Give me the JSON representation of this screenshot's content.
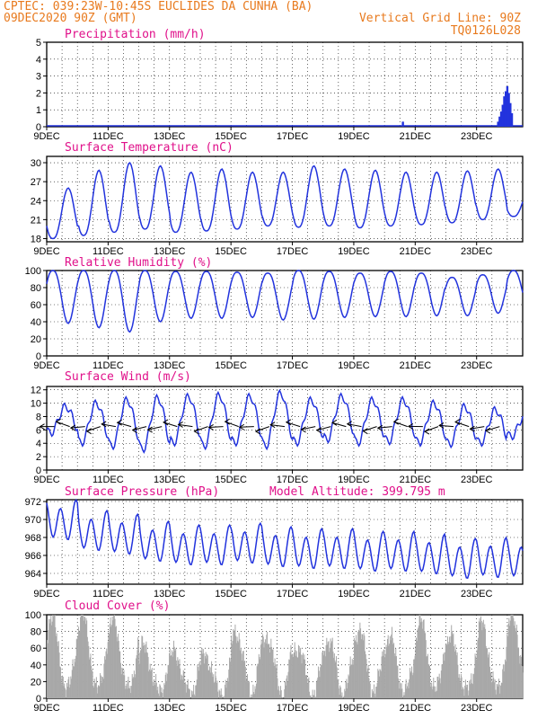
{
  "header": {
    "left_line1": "CPTEC:   039:23W-10:45S   EUCLIDES DA CUNHA (BA)",
    "left_line2": "09DEC2020 90Z (GMT)",
    "right_line2": "Vertical Grid Line: 90Z",
    "right_line3": "TQ0126L028"
  },
  "colors": {
    "header": "#e87a1e",
    "panel_title": "#e0108a",
    "series": "#2233dd",
    "cloud": "#a8a8a8"
  },
  "x_axis": {
    "labels": [
      "9DEC",
      "11DEC",
      "13DEC",
      "15DEC",
      "17DEC",
      "19DEC",
      "21DEC",
      "23DEC"
    ],
    "range_days": [
      9,
      24.5
    ]
  },
  "chart_data": [
    {
      "id": "precipitation",
      "type": "bar",
      "title": "Precipitation (mm/h)",
      "ylim": [
        0,
        5
      ],
      "yticks": [
        0,
        1,
        2,
        3,
        4,
        5
      ],
      "x": [
        20.6,
        23.7,
        23.75,
        23.8,
        23.85,
        23.9,
        23.95,
        24.0,
        24.05,
        24.1,
        24.15
      ],
      "values": [
        0.3,
        0.3,
        0.6,
        0.9,
        1.3,
        1.8,
        2.1,
        2.4,
        2.0,
        1.4,
        0.8
      ]
    },
    {
      "id": "temperature",
      "type": "line",
      "title": "Surface Temperature (nC)",
      "ylim": [
        17.5,
        31
      ],
      "yticks": [
        18,
        21,
        24,
        27,
        30
      ],
      "daily_max": [
        26.0,
        28.8,
        30.0,
        29.5,
        28.5,
        29.0,
        28.5,
        28.5,
        29.5,
        29.0,
        28.8,
        28.5,
        28.5,
        28.7,
        29.0,
        25.5
      ],
      "daily_min": [
        18.0,
        18.5,
        19.0,
        19.5,
        19.0,
        19.2,
        19.5,
        20.0,
        19.8,
        20.0,
        19.7,
        20.0,
        20.2,
        20.5,
        21.0,
        21.5
      ]
    },
    {
      "id": "humidity",
      "type": "line",
      "title": "Relative Humidity (%)",
      "ylim": [
        0,
        100
      ],
      "yticks": [
        0,
        20,
        40,
        60,
        80,
        100
      ],
      "daily_max": [
        100,
        100,
        100,
        100,
        99,
        99,
        98,
        97,
        100,
        99,
        97,
        99,
        97,
        92,
        95,
        100
      ],
      "daily_min": [
        38,
        33,
        28,
        40,
        44,
        44,
        45,
        42,
        43,
        45,
        46,
        46,
        47,
        47,
        50,
        55
      ]
    },
    {
      "id": "wind",
      "type": "line",
      "title": "Surface Wind (m/s)",
      "ylim": [
        0,
        12.5
      ],
      "yticks": [
        0,
        2,
        4,
        6,
        8,
        10,
        12
      ],
      "daily_max": [
        9.5,
        10.0,
        10.5,
        10.8,
        11.0,
        11.2,
        11.0,
        11.5,
        10.5,
        11.0,
        10.5,
        10.5,
        10.0,
        9.5,
        9.0,
        8.5
      ],
      "daily_min": [
        5.5,
        4.0,
        3.5,
        3.0,
        4.0,
        3.5,
        4.0,
        3.5,
        4.0,
        4.5,
        4.0,
        4.2,
        4.0,
        3.8,
        4.0,
        5.0
      ],
      "vector_level": 6.5
    },
    {
      "id": "pressure",
      "type": "line",
      "title": "Surface Pressure (hPa)",
      "annotation": "Model Altitude: 399.795 m",
      "ylim": [
        962.8,
        972.2
      ],
      "yticks": [
        964,
        966,
        968,
        970,
        972
      ],
      "daily_mean": [
        969.8,
        968.6,
        968.2,
        967.4,
        967.0,
        967.0,
        967.2,
        966.8,
        966.6,
        966.6,
        966.3,
        966.3,
        966.0,
        965.5,
        965.6,
        965.5
      ],
      "semidiurnal_amplitude": 1.9
    },
    {
      "id": "cloud",
      "type": "area",
      "title": "Cloud Cover (%)",
      "ylim": [
        0,
        100
      ],
      "yticks": [
        0,
        20,
        40,
        60,
        80,
        100
      ],
      "daily_peak": [
        95,
        98,
        92,
        62,
        55,
        52,
        80,
        75,
        62,
        70,
        82,
        72,
        92,
        72,
        88,
        98
      ]
    }
  ]
}
